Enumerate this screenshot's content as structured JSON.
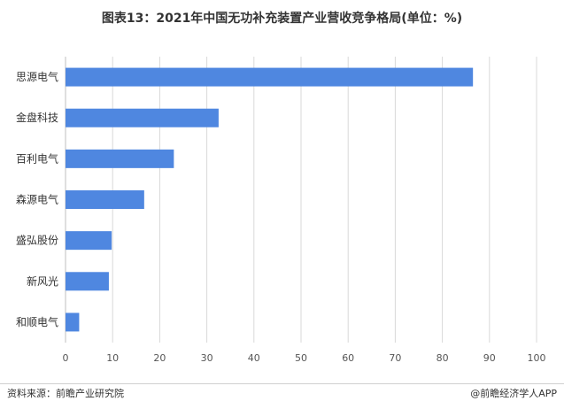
{
  "title": "图表13：2021年中国无功补充装置产业营收竞争格局(单位：%)",
  "source": "资料来源：前瞻产业研究院",
  "credit": "@前瞻经济学人APP",
  "colors": {
    "bar": "#4f87e0",
    "grid": "#d9d9d9",
    "axis": "#bfbfbf"
  },
  "chart_data": {
    "type": "bar",
    "orientation": "horizontal",
    "categories": [
      "思源电气",
      "金盘科技",
      "百利电气",
      "森源电气",
      "盛弘股份",
      "新风光",
      "和顺电气"
    ],
    "values": [
      86.5,
      32.5,
      23,
      16.7,
      9.8,
      9.2,
      2.9
    ],
    "xlim": [
      0,
      100
    ],
    "xticks": [
      0,
      10,
      20,
      30,
      40,
      50,
      60,
      70,
      80,
      90,
      100
    ],
    "grid": true
  }
}
